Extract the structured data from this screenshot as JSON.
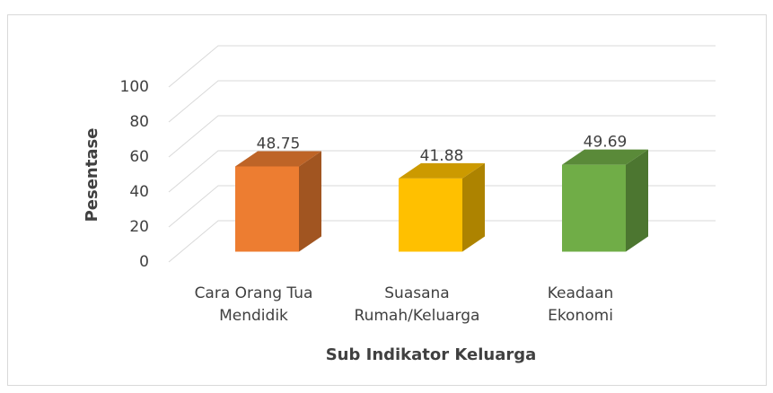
{
  "chart_data": {
    "type": "bar3d",
    "x_label": "Sub Indikator Keluarga",
    "y_label": "Pesentase",
    "categories": [
      [
        "Cara Orang Tua",
        "Mendidik"
      ],
      [
        "Suasana",
        "Rumah/Keluarga"
      ],
      [
        "Keadaan",
        "Ekonomi"
      ]
    ],
    "values": [
      48.75,
      41.88,
      49.69
    ],
    "colors": [
      "#ED7D31",
      "#FFC000",
      "#70AD47"
    ],
    "ylim": [
      0,
      100
    ],
    "yticks": [
      0,
      20,
      40,
      60,
      80,
      100
    ],
    "grid": true
  }
}
